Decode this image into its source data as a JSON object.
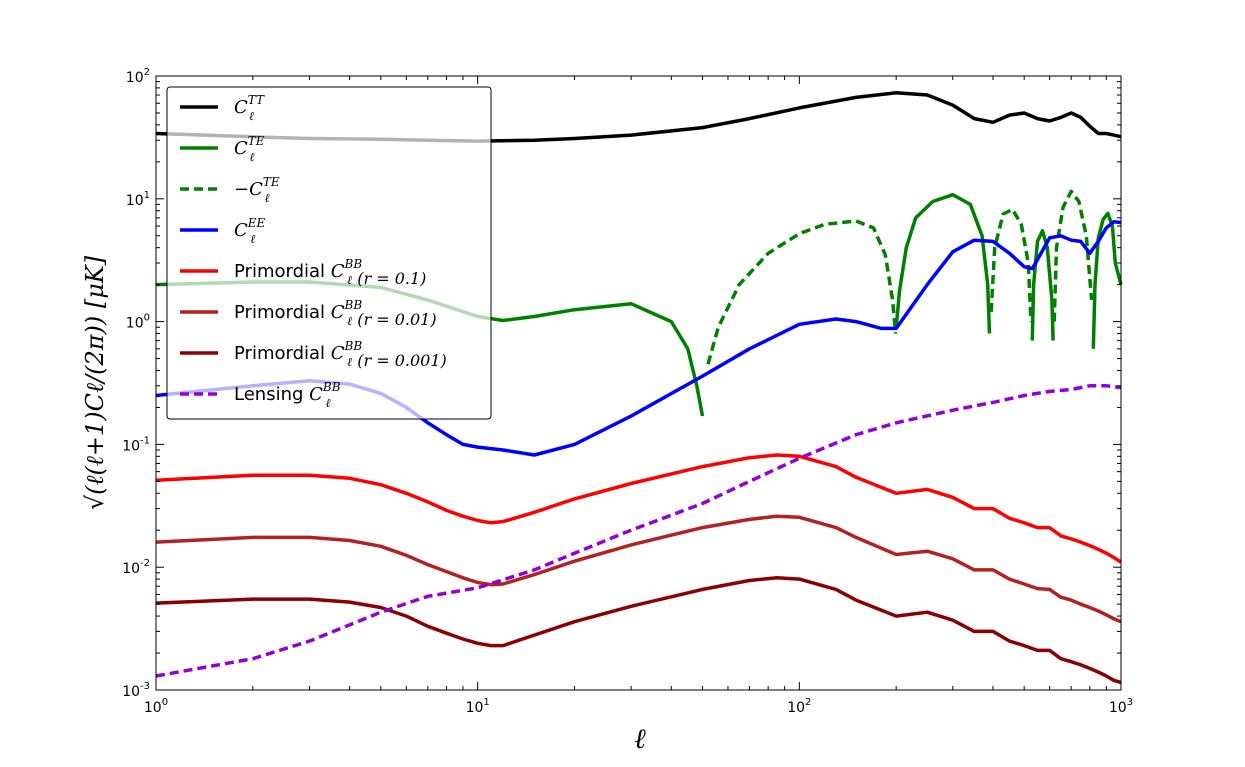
{
  "chart_data": {
    "type": "line",
    "title": "",
    "xlabel": "ℓ",
    "ylabel": "√(ℓ(ℓ+1)Cℓ/(2π))    [μK]",
    "xscale": "log",
    "yscale": "log",
    "xlim": [
      1,
      1000
    ],
    "ylim": [
      0.001,
      100
    ],
    "x_ticks": [
      {
        "base": "10",
        "exp": "0",
        "value": 1
      },
      {
        "base": "10",
        "exp": "1",
        "value": 10
      },
      {
        "base": "10",
        "exp": "2",
        "value": 100
      },
      {
        "base": "10",
        "exp": "3",
        "value": 1000
      }
    ],
    "y_ticks": [
      {
        "base": "10",
        "exp": "-3",
        "value": 0.001
      },
      {
        "base": "10",
        "exp": "-2",
        "value": 0.01
      },
      {
        "base": "10",
        "exp": "-1",
        "value": 0.1
      },
      {
        "base": "10",
        "exp": "0",
        "value": 1
      },
      {
        "base": "10",
        "exp": "1",
        "value": 10
      },
      {
        "base": "10",
        "exp": "2",
        "value": 100
      }
    ],
    "legend_position": "upper-left",
    "series": [
      {
        "id": "tt",
        "color": "#000000",
        "dash": "solid",
        "legend": {
          "prefix": "",
          "sym": "C",
          "sub": "ℓ",
          "sup": "TT",
          "suffix": ""
        },
        "x": [
          1,
          2,
          3,
          5,
          7,
          10,
          15,
          20,
          30,
          50,
          70,
          100,
          150,
          200,
          250,
          300,
          350,
          400,
          450,
          500,
          550,
          600,
          650,
          700,
          750,
          800,
          850,
          900,
          950,
          1000
        ],
        "y": [
          34,
          32,
          31,
          30.5,
          30,
          29.5,
          30,
          31,
          33,
          38,
          45,
          55,
          67,
          73,
          70,
          58,
          45,
          42,
          48,
          50,
          45,
          43,
          46,
          50,
          46,
          39,
          34,
          34,
          33,
          32
        ]
      },
      {
        "id": "te_pos",
        "color": "#008000",
        "dash": "solid",
        "legend": {
          "prefix": "",
          "sym": "C",
          "sub": "ℓ",
          "sup": "TE",
          "suffix": ""
        },
        "x": [
          1,
          2,
          3,
          5,
          7,
          10,
          12,
          15,
          20,
          30,
          40,
          45,
          48,
          50
        ],
        "y": [
          2,
          2.1,
          2.1,
          1.9,
          1.5,
          1.1,
          1.02,
          1.1,
          1.25,
          1.4,
          1.0,
          0.6,
          0.3,
          0.17
        ],
        "segments": [
          {
            "x": [
              200,
              205,
              215,
              230,
              260,
              300,
              340,
              370,
              385,
              390
            ],
            "y": [
              0.9,
              1.8,
              4,
              7,
              9.5,
              10.8,
              9,
              5,
              2,
              0.8
            ]
          },
          {
            "x": [
              530,
              535,
              550,
              570,
              590,
              610,
              615
            ],
            "y": [
              0.7,
              2,
              4.5,
              5.5,
              4,
              1.5,
              0.7
            ]
          },
          {
            "x": [
              820,
              830,
              850,
              880,
              910,
              940,
              960,
              1000
            ],
            "y": [
              0.6,
              2,
              4.8,
              6.8,
              7.6,
              6,
              3,
              2
            ]
          }
        ]
      },
      {
        "id": "te_neg",
        "color": "#008000",
        "dash": "dashed",
        "legend": {
          "prefix": "−",
          "sym": "C",
          "sub": "ℓ",
          "sup": "TE",
          "suffix": ""
        },
        "x": [
          52,
          56,
          65,
          80,
          100,
          120,
          150,
          170,
          185,
          195,
          199
        ],
        "y": [
          0.45,
          0.9,
          2,
          3.6,
          5.2,
          6.2,
          6.6,
          5.8,
          3.5,
          1.5,
          0.8
        ],
        "segments": [
          {
            "x": [
              395,
              405,
              430,
              460,
              490,
              515,
              525
            ],
            "y": [
              1.2,
              4,
              7.5,
              8.2,
              6.2,
              3,
              1
            ]
          },
          {
            "x": [
              620,
              630,
              660,
              700,
              740,
              780,
              810
            ],
            "y": [
              1,
              4,
              8.5,
              11.5,
              9.5,
              5,
              1.5
            ]
          }
        ]
      },
      {
        "id": "ee",
        "color": "#0000ff",
        "dash": "solid",
        "legend": {
          "prefix": "",
          "sym": "C",
          "sub": "ℓ",
          "sup": "EE",
          "suffix": ""
        },
        "x": [
          1,
          2,
          3,
          4,
          5,
          6,
          7,
          8,
          9,
          10,
          12,
          15,
          20,
          30,
          50,
          70,
          100,
          130,
          150,
          180,
          200,
          250,
          300,
          350,
          400,
          450,
          500,
          530,
          550,
          600,
          650,
          700,
          750,
          800,
          850,
          900,
          950,
          1000
        ],
        "y": [
          0.25,
          0.3,
          0.33,
          0.31,
          0.26,
          0.2,
          0.15,
          0.12,
          0.1,
          0.095,
          0.09,
          0.082,
          0.1,
          0.17,
          0.36,
          0.6,
          0.95,
          1.05,
          1.0,
          0.88,
          0.88,
          2,
          3.7,
          4.6,
          4.5,
          3.6,
          2.8,
          2.7,
          3.2,
          4.8,
          5,
          4.6,
          4.5,
          3.6,
          4.5,
          5.8,
          6.5,
          6.4
        ]
      },
      {
        "id": "bb01",
        "color": "#ff0000",
        "dash": "solid",
        "legend": {
          "prefix": "Primordial ",
          "sym": "C",
          "sub": "ℓ",
          "sup": "BB",
          "suffix": "(r = 0.1)"
        },
        "x": [
          1,
          2,
          3,
          4,
          5,
          6,
          7,
          8,
          9,
          10,
          11,
          12,
          15,
          20,
          30,
          50,
          70,
          85,
          100,
          130,
          150,
          200,
          250,
          300,
          350,
          400,
          450,
          500,
          550,
          600,
          650,
          700,
          750,
          800,
          850,
          900,
          950,
          1000
        ],
        "y": [
          0.051,
          0.056,
          0.056,
          0.053,
          0.047,
          0.04,
          0.034,
          0.029,
          0.026,
          0.024,
          0.023,
          0.0235,
          0.028,
          0.036,
          0.048,
          0.066,
          0.078,
          0.082,
          0.08,
          0.066,
          0.054,
          0.04,
          0.043,
          0.037,
          0.03,
          0.03,
          0.025,
          0.023,
          0.021,
          0.021,
          0.018,
          0.017,
          0.016,
          0.015,
          0.014,
          0.013,
          0.012,
          0.011
        ]
      },
      {
        "id": "bb001",
        "color": "#b22222",
        "dash": "solid",
        "legend": {
          "prefix": "Primordial ",
          "sym": "C",
          "sub": "ℓ",
          "sup": "BB",
          "suffix": "(r = 0.01)"
        },
        "x": [
          1,
          2,
          3,
          4,
          5,
          6,
          7,
          8,
          9,
          10,
          11,
          12,
          15,
          20,
          30,
          50,
          70,
          85,
          100,
          130,
          150,
          200,
          250,
          300,
          350,
          400,
          450,
          500,
          550,
          600,
          650,
          700,
          750,
          800,
          850,
          900,
          950,
          1000
        ],
        "y": [
          0.016,
          0.0175,
          0.0175,
          0.0165,
          0.0148,
          0.0125,
          0.0105,
          0.0092,
          0.0082,
          0.0075,
          0.0072,
          0.0073,
          0.0087,
          0.0112,
          0.0152,
          0.021,
          0.0245,
          0.026,
          0.0255,
          0.021,
          0.0175,
          0.0127,
          0.0135,
          0.0117,
          0.0095,
          0.0095,
          0.008,
          0.0073,
          0.0067,
          0.0066,
          0.0057,
          0.0054,
          0.005,
          0.0047,
          0.0044,
          0.0041,
          0.0038,
          0.0036
        ]
      },
      {
        "id": "bb0001",
        "color": "#8b0000",
        "dash": "solid",
        "legend": {
          "prefix": "Primordial ",
          "sym": "C",
          "sub": "ℓ",
          "sup": "BB",
          "suffix": "(r = 0.001)"
        },
        "x": [
          1,
          2,
          3,
          4,
          5,
          6,
          7,
          8,
          9,
          10,
          11,
          12,
          15,
          20,
          30,
          50,
          70,
          85,
          100,
          130,
          150,
          200,
          250,
          300,
          350,
          400,
          450,
          500,
          550,
          600,
          650,
          700,
          750,
          800,
          850,
          900,
          950,
          1000
        ],
        "y": [
          0.0051,
          0.0055,
          0.0055,
          0.0052,
          0.0047,
          0.004,
          0.0033,
          0.0029,
          0.0026,
          0.0024,
          0.0023,
          0.0023,
          0.0028,
          0.0036,
          0.0048,
          0.0066,
          0.0078,
          0.0082,
          0.008,
          0.0066,
          0.0054,
          0.004,
          0.0043,
          0.0037,
          0.003,
          0.003,
          0.0025,
          0.0023,
          0.0021,
          0.0021,
          0.0018,
          0.0017,
          0.0016,
          0.0015,
          0.0014,
          0.0013,
          0.0012,
          0.00115
        ]
      },
      {
        "id": "lensing",
        "color": "#9400d3",
        "dash": "dashed",
        "legend": {
          "prefix": "Lensing ",
          "sym": "C",
          "sub": "ℓ",
          "sup": "BB",
          "suffix": ""
        },
        "x": [
          1,
          2,
          3,
          5,
          7,
          10,
          15,
          20,
          30,
          50,
          70,
          100,
          150,
          200,
          300,
          400,
          500,
          600,
          700,
          800,
          900,
          1000
        ],
        "y": [
          0.0013,
          0.0018,
          0.0025,
          0.0043,
          0.0058,
          0.0068,
          0.0095,
          0.013,
          0.02,
          0.033,
          0.05,
          0.077,
          0.12,
          0.15,
          0.19,
          0.22,
          0.25,
          0.27,
          0.28,
          0.3,
          0.3,
          0.29
        ]
      }
    ]
  }
}
